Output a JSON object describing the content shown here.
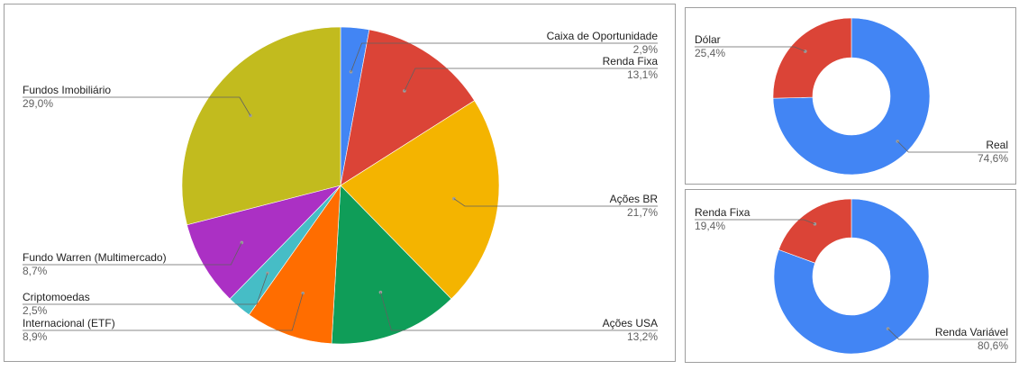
{
  "chart_data": [
    {
      "type": "pie",
      "slices": [
        {
          "label": "Caixa de Oportunidade",
          "value": 2.9,
          "display": "2,9%",
          "color": "#4285f4"
        },
        {
          "label": "Renda Fixa",
          "value": 13.1,
          "display": "13,1%",
          "color": "#db4437"
        },
        {
          "label": "Ações BR",
          "value": 21.7,
          "display": "21,7%",
          "color": "#f4b400"
        },
        {
          "label": "Ações USA",
          "value": 13.2,
          "display": "13,2%",
          "color": "#0f9d58"
        },
        {
          "label": "Internacional (ETF)",
          "value": 8.9,
          "display": "8,9%",
          "color": "#ff6d00"
        },
        {
          "label": "Criptomoedas",
          "value": 2.5,
          "display": "2,5%",
          "color": "#46bdc6"
        },
        {
          "label": "Fundo Warren (Multimercado)",
          "value": 8.7,
          "display": "8,7%",
          "color": "#ab30c4"
        },
        {
          "label": "Fundos Imobiliário",
          "value": 29.0,
          "display": "29,0%",
          "color": "#c2bb1e"
        }
      ]
    },
    {
      "type": "pie",
      "donut": true,
      "slices": [
        {
          "label": "Real",
          "value": 74.6,
          "display": "74,6%",
          "color": "#4285f4"
        },
        {
          "label": "Dólar",
          "value": 25.4,
          "display": "25,4%",
          "color": "#db4437"
        }
      ]
    },
    {
      "type": "pie",
      "donut": true,
      "slices": [
        {
          "label": "Renda Variável",
          "value": 80.6,
          "display": "80,6%",
          "color": "#4285f4"
        },
        {
          "label": "Renda Fixa",
          "value": 19.4,
          "display": "19,4%",
          "color": "#db4437"
        }
      ]
    }
  ]
}
